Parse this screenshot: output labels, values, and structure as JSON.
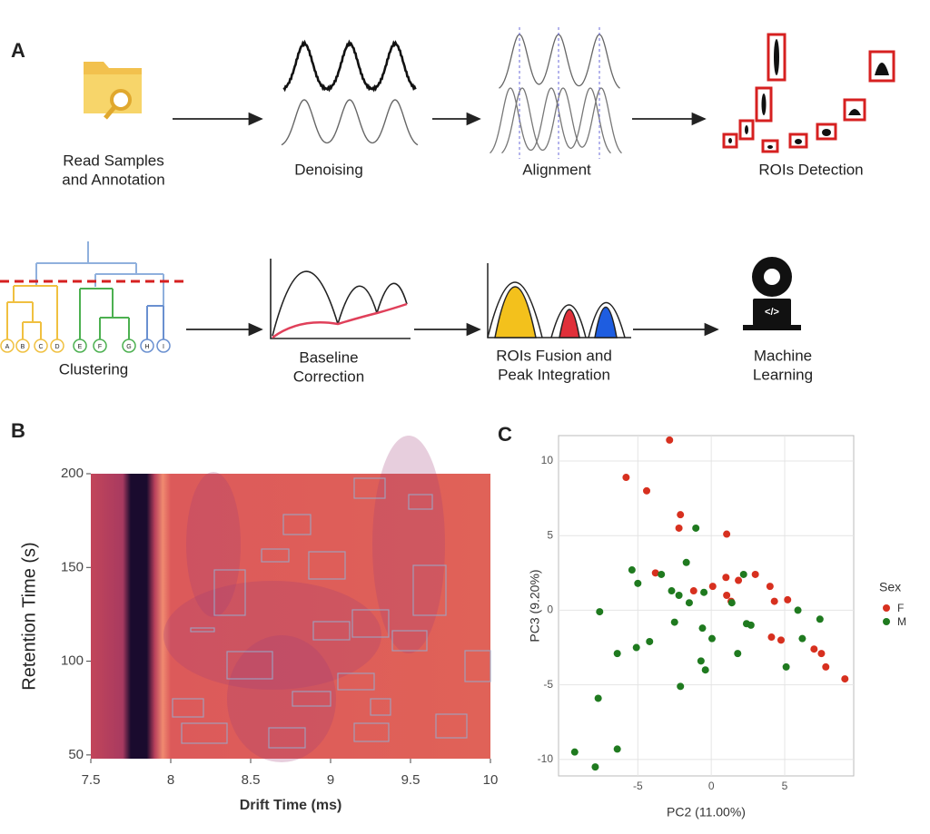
{
  "panel_labels": [
    "A",
    "B",
    "C"
  ],
  "pipeline": [
    {
      "lines": [
        "Read Samples",
        "and Annotation"
      ]
    },
    {
      "lines": [
        "Denoising"
      ]
    },
    {
      "lines": [
        "Alignment"
      ]
    },
    {
      "lines": [
        "ROIs Detection"
      ]
    },
    {
      "lines": [
        "Clustering"
      ]
    },
    {
      "lines": [
        "Baseline",
        "Correction"
      ]
    },
    {
      "lines": [
        "ROIs Fusion and",
        "Peak Integration"
      ]
    },
    {
      "lines": [
        "Machine",
        "Learning"
      ]
    }
  ],
  "dendrogram_leaves": [
    "A",
    "B",
    "C",
    "D",
    "E",
    "F",
    "G",
    "H",
    "I"
  ],
  "code_icon": "</>",
  "chart_data": [
    {
      "type": "heatmap",
      "xlabel": "Drift Time (ms)",
      "ylabel": "Retention Time (s)",
      "xlim": [
        7.5,
        10
      ],
      "ylim": [
        48,
        200
      ],
      "xticks": [
        7.5,
        8,
        8.5,
        9,
        9.5,
        10
      ],
      "yticks": [
        50,
        100,
        150,
        200
      ]
    },
    {
      "type": "scatter",
      "xlabel": "PC2 (11.00%)",
      "ylabel": "PC3 (9.20%)",
      "legend_title": "Sex",
      "legend": "right",
      "grid": true,
      "xlim": [
        -10.4,
        9.7
      ],
      "ylim": [
        -11.1,
        11.7
      ],
      "xticks": [
        -5,
        0,
        5
      ],
      "yticks": [
        -10,
        -5,
        0,
        5,
        10
      ],
      "series": [
        {
          "name": "F",
          "color": "#d7301f",
          "x": [
            -2.84,
            -5.8,
            -4.4,
            -2.1,
            -2.2,
            1.05,
            -3.8,
            -1.2,
            0.1,
            1.0,
            1.05,
            1.35,
            1.85,
            3.0,
            4.0,
            4.3,
            5.2,
            4.1,
            4.75,
            7.0,
            7.5,
            7.8,
            9.1
          ],
          "y": [
            11.4,
            8.9,
            8.0,
            6.4,
            5.5,
            5.1,
            2.5,
            1.3,
            1.6,
            2.2,
            1.0,
            0.6,
            2.0,
            2.4,
            1.6,
            0.6,
            0.7,
            -1.8,
            -2.0,
            -2.6,
            -2.9,
            -3.8,
            -4.6
          ]
        },
        {
          "name": "M",
          "color": "#1f7a1f",
          "x": [
            -9.3,
            -7.9,
            -7.6,
            -7.7,
            -6.4,
            -6.4,
            -5.4,
            -5.0,
            -5.1,
            -4.2,
            -3.4,
            -2.7,
            -2.5,
            -2.2,
            -2.1,
            -1.7,
            -1.5,
            -1.05,
            -0.5,
            -0.6,
            -0.7,
            -0.4,
            0.05,
            1.4,
            1.8,
            2.2,
            2.4,
            2.7,
            5.1,
            5.9,
            6.2,
            7.4
          ],
          "y": [
            -9.5,
            -10.5,
            -0.1,
            -5.9,
            -2.9,
            -9.3,
            2.7,
            1.8,
            -2.5,
            -2.1,
            2.4,
            1.3,
            -0.8,
            1.0,
            -5.1,
            3.2,
            0.5,
            5.5,
            1.2,
            -1.2,
            -3.4,
            -4.0,
            -1.9,
            0.5,
            -2.9,
            2.4,
            -0.9,
            -1.0,
            -3.8,
            0.0,
            -1.9,
            -0.6
          ]
        }
      ]
    }
  ]
}
